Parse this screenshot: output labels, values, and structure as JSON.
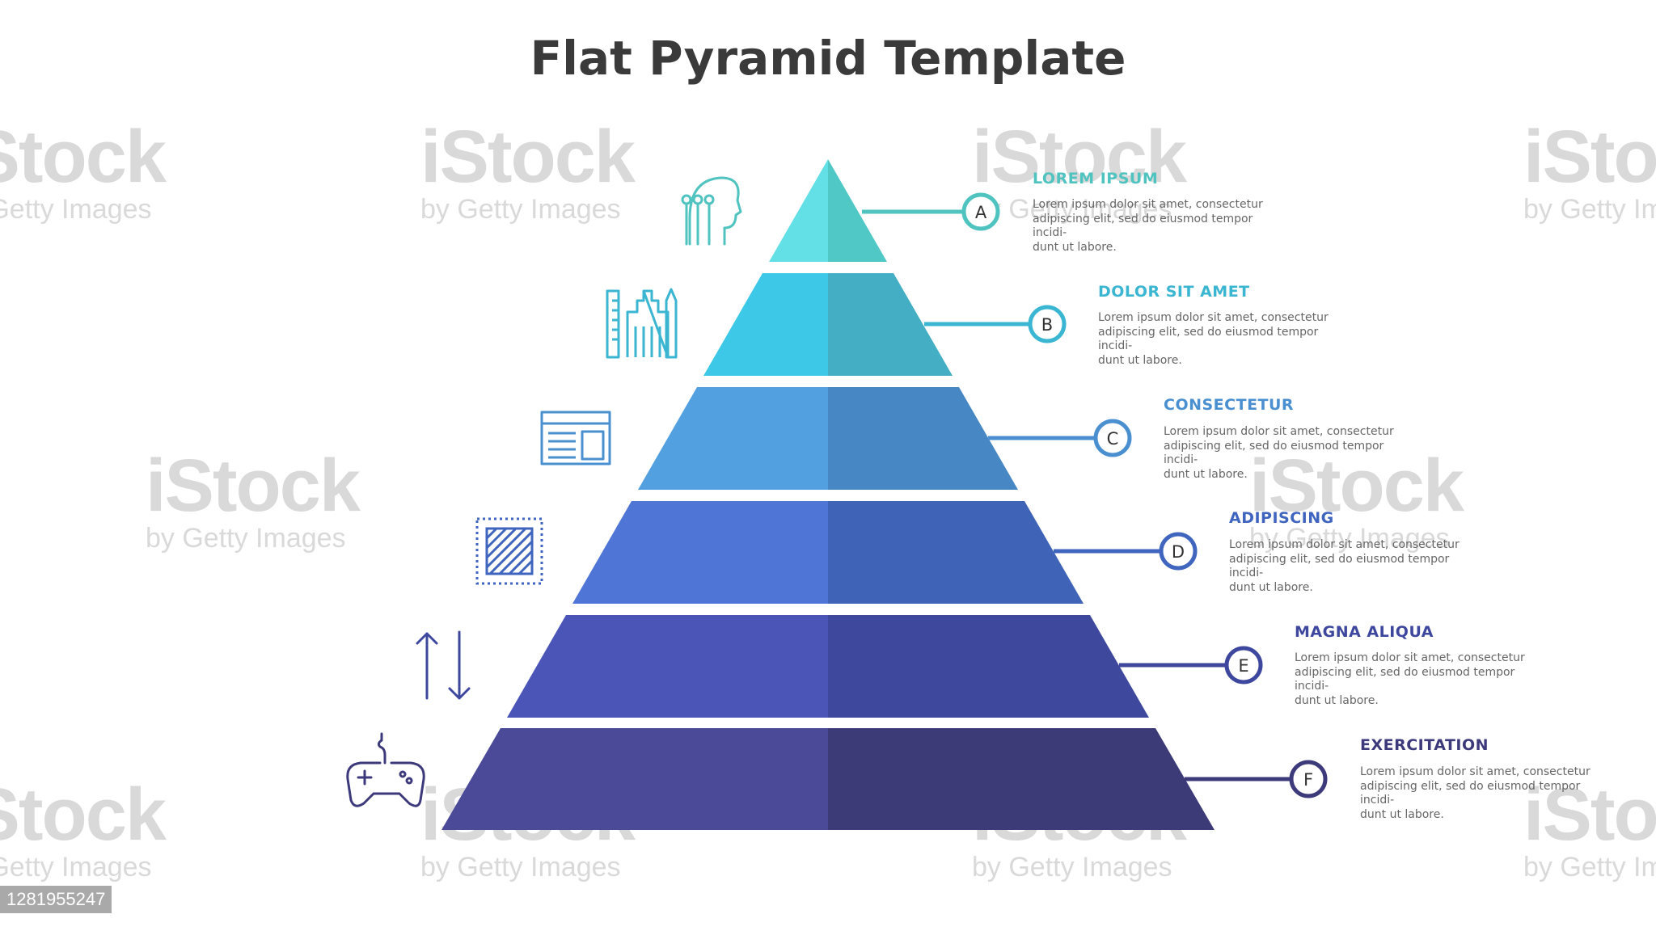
{
  "title": "Flat Pyramid Template",
  "watermark": {
    "brand": "iStock",
    "sub": "by Getty Images",
    "stock_id": "1281955247"
  },
  "levels": [
    {
      "letter": "A",
      "heading": "LOREM IPSUM",
      "text": "Lorem ipsum dolor sit amet, consectetur\nadipiscing elit, sed do eiusmod tempor incidi-\ndunt ut labore.",
      "light": "#63e0e6",
      "dark": "#4fc8c6",
      "accent": "#4fc3bf",
      "icon": "team-head-icon"
    },
    {
      "letter": "B",
      "heading": "DOLOR SIT AMET",
      "text": "Lorem ipsum dolor sit amet, consectetur\nadipiscing elit, sed do eiusmod tempor incidi-\ndunt ut labore.",
      "light": "#3ec8e8",
      "dark": "#43aec4",
      "accent": "#3bb6d2",
      "icon": "architecture-tools-icon"
    },
    {
      "letter": "C",
      "heading": "CONSECTETUR",
      "text": "Lorem ipsum dolor sit amet, consectetur\nadipiscing elit, sed do eiusmod tempor incidi-\ndunt ut labore.",
      "light": "#53a0e0",
      "dark": "#4788c4",
      "accent": "#4a90d0",
      "icon": "browser-layout-icon"
    },
    {
      "letter": "D",
      "heading": "ADIPISCING",
      "text": "Lorem ipsum dolor sit amet, consectetur\nadipiscing elit, sed do eiusmod tempor incidi-\ndunt ut labore.",
      "light": "#4f75d6",
      "dark": "#3f63b6",
      "accent": "#3f65bf",
      "icon": "texture-square-icon"
    },
    {
      "letter": "E",
      "heading": "MAGNA ALIQUA",
      "text": "Lorem ipsum dolor sit amet, consectetur\nadipiscing elit, sed do eiusmod tempor incidi-\ndunt ut labore.",
      "light": "#4b55b8",
      "dark": "#3e499e",
      "accent": "#3e479e",
      "icon": "up-down-arrows-icon"
    },
    {
      "letter": "F",
      "heading": "EXERCITATION",
      "text": "Lorem ipsum dolor sit amet, consectetur\nadipiscing elit, sed do eiusmod tempor incidi-\ndunt ut labore.",
      "light": "#4a4a98",
      "dark": "#3d3a78",
      "accent": "#3d3a7c",
      "icon": "gamepad-icon"
    }
  ]
}
